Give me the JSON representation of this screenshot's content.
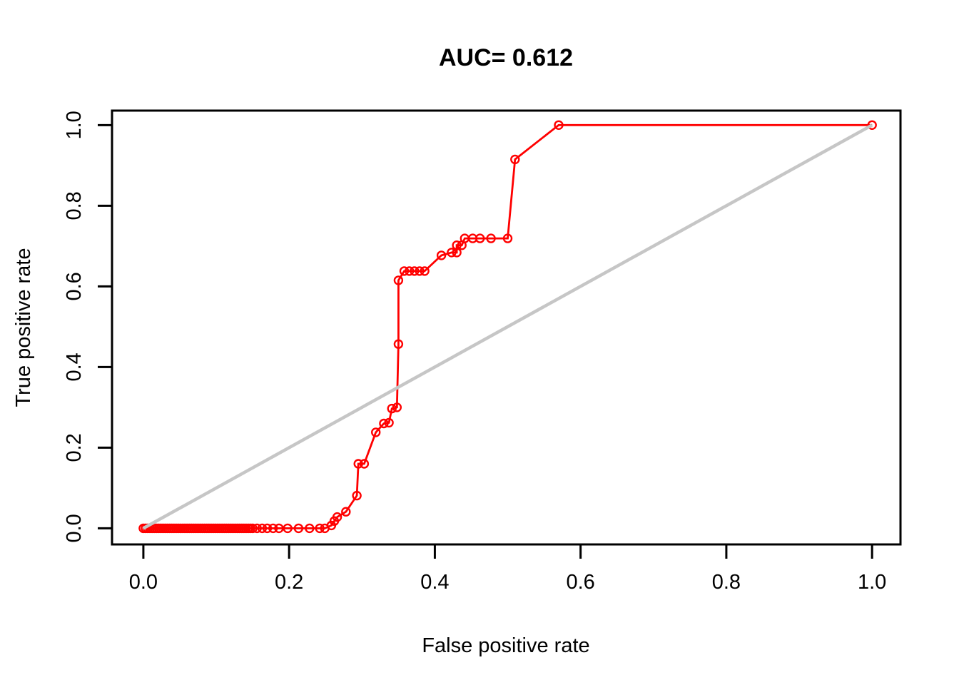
{
  "page": {
    "background": "#FFFFFF"
  },
  "chart_data": {
    "type": "line",
    "title": "AUC= 0.612",
    "auc": 0.612,
    "xlabel": "False positive rate",
    "ylabel": "True positive rate",
    "xlim": [
      -0.043,
      1.039
    ],
    "ylim": [
      -0.04,
      1.036
    ],
    "xticks": [
      0.0,
      0.2,
      0.4,
      0.6,
      0.8,
      1.0
    ],
    "yticks": [
      0.0,
      0.2,
      0.4,
      0.6,
      0.8,
      1.0
    ],
    "grid": false,
    "legend": "none",
    "series": [
      {
        "id": "roc-curve",
        "name": "ROC curve",
        "color": "#FF0000",
        "marker": "circle",
        "marker_radius": 5.5,
        "marker_stroke": 2.4,
        "line_width": 2.8,
        "points": [
          [
            0.0,
            0
          ],
          [
            0.003,
            0
          ],
          [
            0.006,
            0
          ],
          [
            0.009,
            0
          ],
          [
            0.012,
            0
          ],
          [
            0.015,
            0
          ],
          [
            0.018,
            0
          ],
          [
            0.021,
            0
          ],
          [
            0.024,
            0
          ],
          [
            0.027,
            0
          ],
          [
            0.03,
            0
          ],
          [
            0.033,
            0
          ],
          [
            0.036,
            0
          ],
          [
            0.039,
            0
          ],
          [
            0.042,
            0
          ],
          [
            0.045,
            0
          ],
          [
            0.048,
            0
          ],
          [
            0.051,
            0
          ],
          [
            0.054,
            0
          ],
          [
            0.057,
            0
          ],
          [
            0.06,
            0
          ],
          [
            0.063,
            0
          ],
          [
            0.066,
            0
          ],
          [
            0.069,
            0
          ],
          [
            0.072,
            0
          ],
          [
            0.075,
            0
          ],
          [
            0.078,
            0
          ],
          [
            0.081,
            0
          ],
          [
            0.084,
            0
          ],
          [
            0.087,
            0
          ],
          [
            0.09,
            0
          ],
          [
            0.093,
            0
          ],
          [
            0.096,
            0
          ],
          [
            0.099,
            0
          ],
          [
            0.102,
            0
          ],
          [
            0.105,
            0
          ],
          [
            0.108,
            0
          ],
          [
            0.111,
            0
          ],
          [
            0.114,
            0
          ],
          [
            0.117,
            0
          ],
          [
            0.12,
            0
          ],
          [
            0.123,
            0
          ],
          [
            0.126,
            0
          ],
          [
            0.129,
            0
          ],
          [
            0.132,
            0
          ],
          [
            0.135,
            0
          ],
          [
            0.138,
            0
          ],
          [
            0.141,
            0
          ],
          [
            0.144,
            0
          ],
          [
            0.147,
            0
          ],
          [
            0.15,
            0
          ],
          [
            0.156,
            0
          ],
          [
            0.163,
            0
          ],
          [
            0.17,
            0
          ],
          [
            0.178,
            0
          ],
          [
            0.186,
            0
          ],
          [
            0.198,
            0
          ],
          [
            0.213,
            0
          ],
          [
            0.228,
            0
          ],
          [
            0.242,
            0
          ],
          [
            0.249,
            0
          ],
          [
            0.258,
            0.007
          ],
          [
            0.262,
            0.018
          ],
          [
            0.266,
            0.028
          ],
          [
            0.278,
            0.041
          ],
          [
            0.293,
            0.081
          ],
          [
            0.295,
            0.16
          ],
          [
            0.303,
            0.16
          ],
          [
            0.319,
            0.238
          ],
          [
            0.33,
            0.26
          ],
          [
            0.337,
            0.262
          ],
          [
            0.341,
            0.297
          ],
          [
            0.348,
            0.3
          ],
          [
            0.35,
            0.457
          ],
          [
            0.35,
            0.615
          ],
          [
            0.358,
            0.638
          ],
          [
            0.365,
            0.638
          ],
          [
            0.372,
            0.638
          ],
          [
            0.379,
            0.638
          ],
          [
            0.386,
            0.638
          ],
          [
            0.409,
            0.677
          ],
          [
            0.423,
            0.684
          ],
          [
            0.43,
            0.684
          ],
          [
            0.43,
            0.702
          ],
          [
            0.437,
            0.702
          ],
          [
            0.441,
            0.719
          ],
          [
            0.452,
            0.719
          ],
          [
            0.462,
            0.719
          ],
          [
            0.477,
            0.719
          ],
          [
            0.5,
            0.719
          ],
          [
            0.51,
            0.915
          ],
          [
            0.57,
            1.0
          ],
          [
            1.0,
            1.0
          ]
        ]
      },
      {
        "id": "diagonal-reference",
        "name": "chance diagonal",
        "color": "#C6C6C6",
        "marker": "none",
        "line_width": 4.5,
        "points": [
          [
            0,
            0
          ],
          [
            1,
            1
          ]
        ]
      }
    ]
  }
}
